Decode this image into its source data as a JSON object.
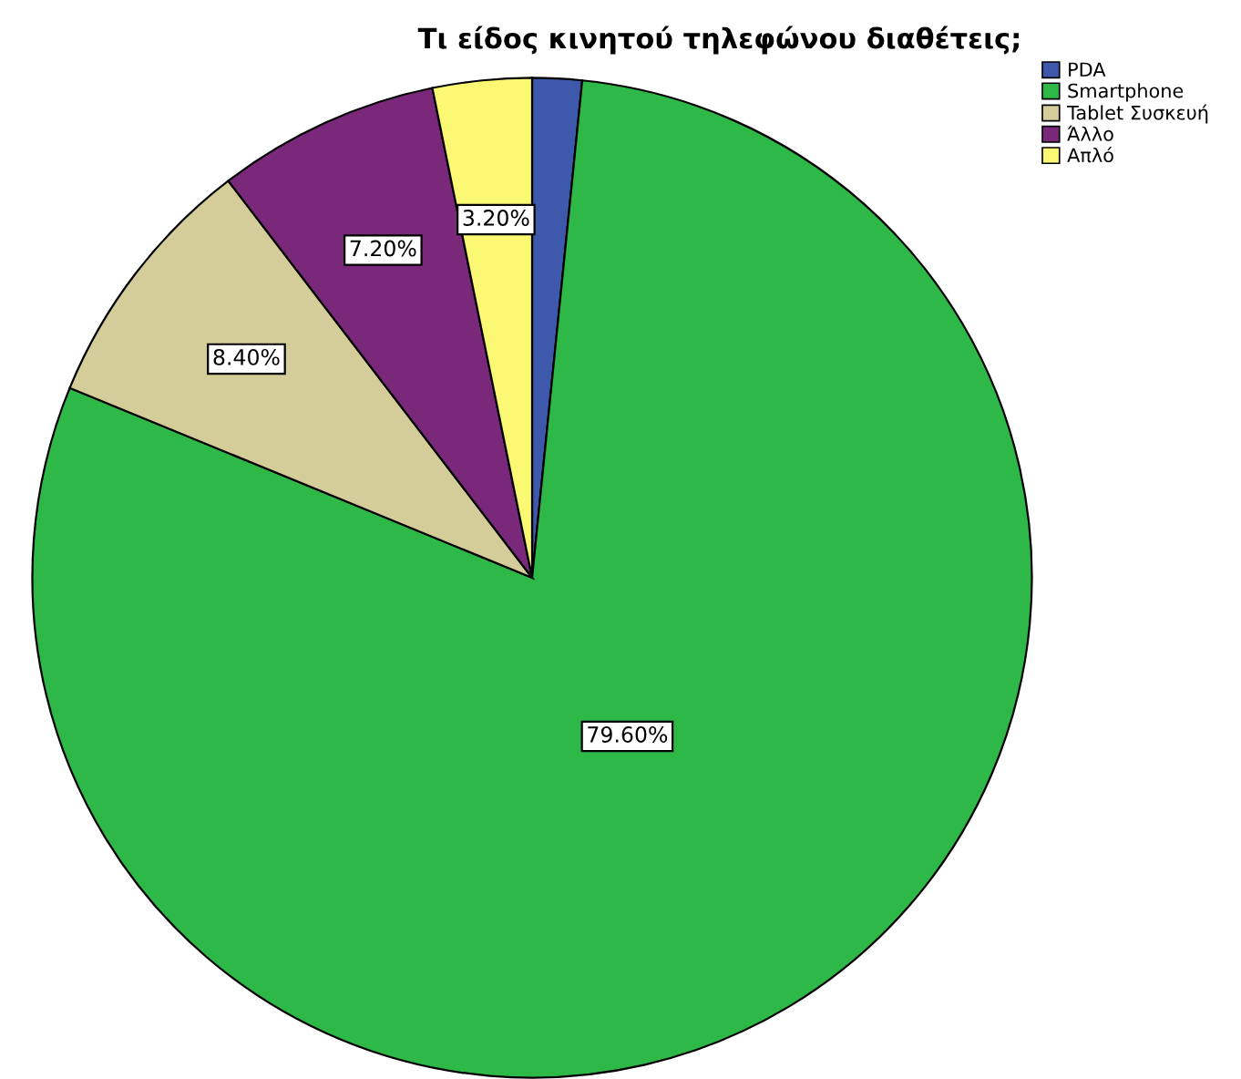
{
  "chart_data": {
    "type": "pie",
    "title": "Τι είδος κινητού τηλεφώνου διαθέτεις;",
    "categories": [
      "PDA",
      "Smartphone",
      "Tablet Συσκευή",
      "Άλλο",
      "Απλό"
    ],
    "values": [
      1.6,
      79.6,
      8.4,
      7.2,
      3.2
    ],
    "colors": [
      "#3e58ac",
      "#2eb848",
      "#d4cc99",
      "#79287a",
      "#fbf873"
    ],
    "value_labels": [
      null,
      "79.60%",
      "8.40%",
      "7.20%",
      "3.20%"
    ],
    "legend": "top right"
  }
}
